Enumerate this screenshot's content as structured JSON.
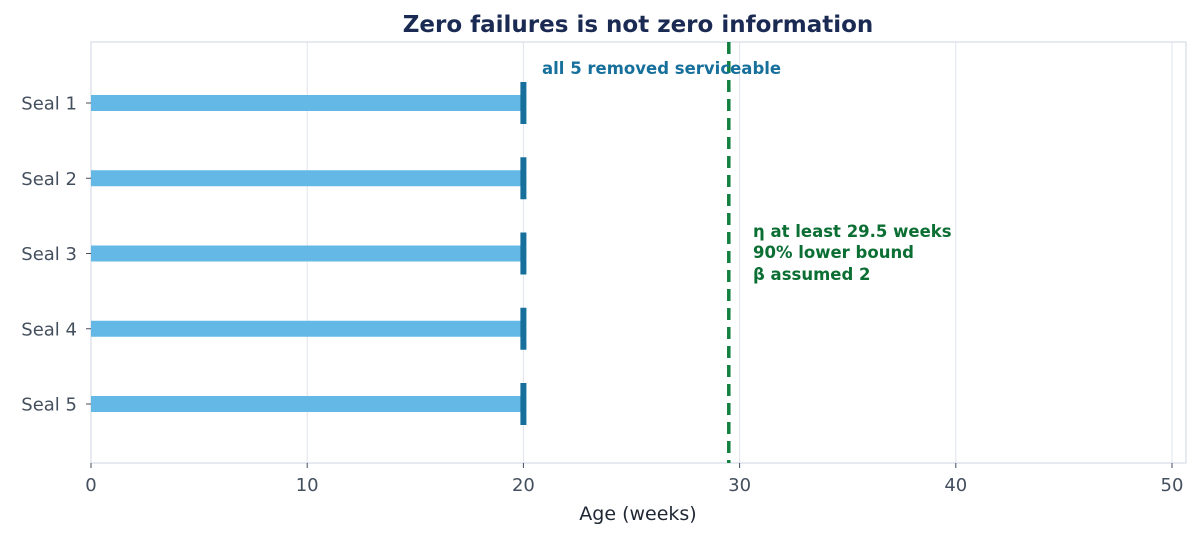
{
  "chart_data": {
    "type": "bar",
    "orientation": "horizontal",
    "title": "Zero failures is not zero information",
    "xlabel": "Age (weeks)",
    "ylabel": "",
    "xlim": [
      0,
      50
    ],
    "x_ticks": [
      0,
      10,
      20,
      30,
      40,
      50
    ],
    "grid": "vertical",
    "categories": [
      "Seal 1",
      "Seal 2",
      "Seal 3",
      "Seal 4",
      "Seal 5"
    ],
    "values": [
      20,
      20,
      20,
      20,
      20
    ],
    "end_markers": "suspension (removed serviceable)",
    "reference_line": {
      "x": 29.5,
      "style": "dashed"
    },
    "annotations": {
      "top": "all 5 removed serviceable",
      "bound_line1": "η at least 29.5 weeks",
      "bound_line2": "90% lower bound",
      "bound_line3": "β assumed 2"
    },
    "colors": {
      "bar": "#63b8e6",
      "end_marker": "#17709b",
      "reference": "#12803f",
      "annotation_top": "#17709b",
      "annotation_bound": "#0b6e33",
      "title": "#1a2a52",
      "grid": "#dfe4ec",
      "tick_text": "#444f5e",
      "axis": "#cfd6e0"
    }
  }
}
